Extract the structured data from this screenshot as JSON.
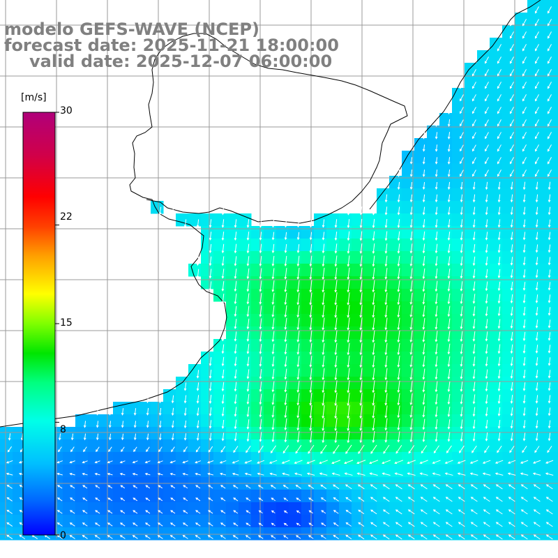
{
  "title": {
    "line1": "modelo GEFS-WAVE (NCEP)",
    "line2": "forecast date: 2025-11-21 18:00:00",
    "line3": "valid date: 2025-12-07 06:00:00"
  },
  "colorbar": {
    "unit": "[m/s]",
    "ticks": [
      {
        "label": "30",
        "value": 30
      },
      {
        "label": "22",
        "value": 22
      },
      {
        "label": "15",
        "value": 15
      },
      {
        "label": "8",
        "value": 8
      },
      {
        "label": "0",
        "value": 0
      }
    ],
    "range": [
      0,
      30
    ],
    "colors": [
      "#0000ff",
      "#0066ff",
      "#00c0ff",
      "#00ffe8",
      "#00ff80",
      "#00e600",
      "#7fff00",
      "#ffff00",
      "#ffa000",
      "#ff4000",
      "#ff0000",
      "#d0004a",
      "#b0007a"
    ]
  },
  "map": {
    "colors": {
      "grid": "#999999",
      "coast": "#000000",
      "land": "#ffffff",
      "arrow": "#ffffff"
    },
    "lon_range_deg": [
      -66,
      -42
    ],
    "lat_range_deg": [
      -65,
      -35
    ],
    "wind_field": {
      "dominant_direction": "from north to south, turning northwestward along the southern edge",
      "max_speed_mps": 13
    }
  }
}
